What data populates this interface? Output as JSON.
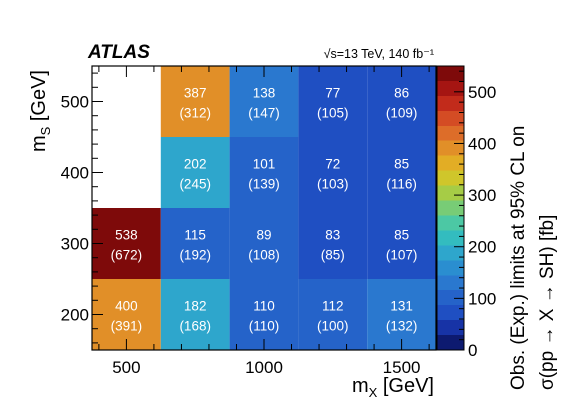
{
  "chart_data": {
    "type": "heatmap",
    "experiment_label": "ATLAS",
    "energy_label": "√s=13 TeV, 140 fb⁻¹",
    "xlabel": "m_X [GeV]",
    "xlabel_main": "m",
    "xlabel_sub": "X",
    "xlabel_unit": " [GeV]",
    "ylabel_main": "m",
    "ylabel_sub": "S",
    "ylabel_unit": " [GeV]",
    "zlabel_line1": "Obs. (Exp.) limits at 95% CL on",
    "zlabel_line2": "σ(pp → X → SH) [fb]",
    "xlim": [
      375,
      1625
    ],
    "ylim": [
      150,
      550
    ],
    "x_ticks": [
      500,
      1000,
      1500
    ],
    "x_tick_labels": [
      "500",
      "1000",
      "1500"
    ],
    "y_ticks": [
      200,
      300,
      400,
      500
    ],
    "y_tick_labels": [
      "200",
      "300",
      "400",
      "500"
    ],
    "z_range": [
      0,
      550
    ],
    "z_ticks": [
      0,
      100,
      200,
      300,
      400,
      500
    ],
    "z_tick_labels": [
      "0",
      "100",
      "200",
      "300",
      "400",
      "500"
    ],
    "cells": [
      {
        "x": 500,
        "y": 200,
        "obs": 400,
        "exp": 391,
        "obs_label": "400",
        "exp_label": "(391)"
      },
      {
        "x": 750,
        "y": 200,
        "obs": 182,
        "exp": 168,
        "obs_label": "182",
        "exp_label": "(168)"
      },
      {
        "x": 1000,
        "y": 200,
        "obs": 110,
        "exp": 110,
        "obs_label": "110",
        "exp_label": "(110)"
      },
      {
        "x": 1250,
        "y": 200,
        "obs": 112,
        "exp": 100,
        "obs_label": "112",
        "exp_label": "(100)"
      },
      {
        "x": 1500,
        "y": 200,
        "obs": 131,
        "exp": 132,
        "obs_label": "131",
        "exp_label": "(132)"
      },
      {
        "x": 500,
        "y": 300,
        "obs": 538,
        "exp": 672,
        "obs_label": "538",
        "exp_label": "(672)"
      },
      {
        "x": 750,
        "y": 300,
        "obs": 115,
        "exp": 192,
        "obs_label": "115",
        "exp_label": "(192)"
      },
      {
        "x": 1000,
        "y": 300,
        "obs": 89,
        "exp": 108,
        "obs_label": "89",
        "exp_label": "(108)"
      },
      {
        "x": 1250,
        "y": 300,
        "obs": 83,
        "exp": 85,
        "obs_label": "83",
        "exp_label": "(85)"
      },
      {
        "x": 1500,
        "y": 300,
        "obs": 85,
        "exp": 107,
        "obs_label": "85",
        "exp_label": "(107)"
      },
      {
        "x": 750,
        "y": 400,
        "obs": 202,
        "exp": 245,
        "obs_label": "202",
        "exp_label": "(245)"
      },
      {
        "x": 1000,
        "y": 400,
        "obs": 101,
        "exp": 139,
        "obs_label": "101",
        "exp_label": "(139)"
      },
      {
        "x": 1250,
        "y": 400,
        "obs": 72,
        "exp": 103,
        "obs_label": "72",
        "exp_label": "(103)"
      },
      {
        "x": 1500,
        "y": 400,
        "obs": 85,
        "exp": 116,
        "obs_label": "85",
        "exp_label": "(116)"
      },
      {
        "x": 750,
        "y": 500,
        "obs": 387,
        "exp": 312,
        "obs_label": "387",
        "exp_label": "(312)"
      },
      {
        "x": 1000,
        "y": 500,
        "obs": 138,
        "exp": 147,
        "obs_label": "138",
        "exp_label": "(147)"
      },
      {
        "x": 1250,
        "y": 500,
        "obs": 77,
        "exp": 105,
        "obs_label": "77",
        "exp_label": "(105)"
      },
      {
        "x": 1500,
        "y": 500,
        "obs": 86,
        "exp": 109,
        "obs_label": "86",
        "exp_label": "(109)"
      }
    ],
    "colorscale": [
      "#0d1a70",
      "#1733a6",
      "#1f4fc2",
      "#2563c9",
      "#2a78cf",
      "#2a8ed0",
      "#2ea6cc",
      "#33bcbf",
      "#4cc8a4",
      "#78cc76",
      "#a6cc46",
      "#cfc62b",
      "#e2ad25",
      "#e18f28",
      "#dd6d29",
      "#d44c24",
      "#c22b1b",
      "#a51512",
      "#7e0a0a"
    ],
    "grid": false,
    "legend": "colorbar-right"
  }
}
